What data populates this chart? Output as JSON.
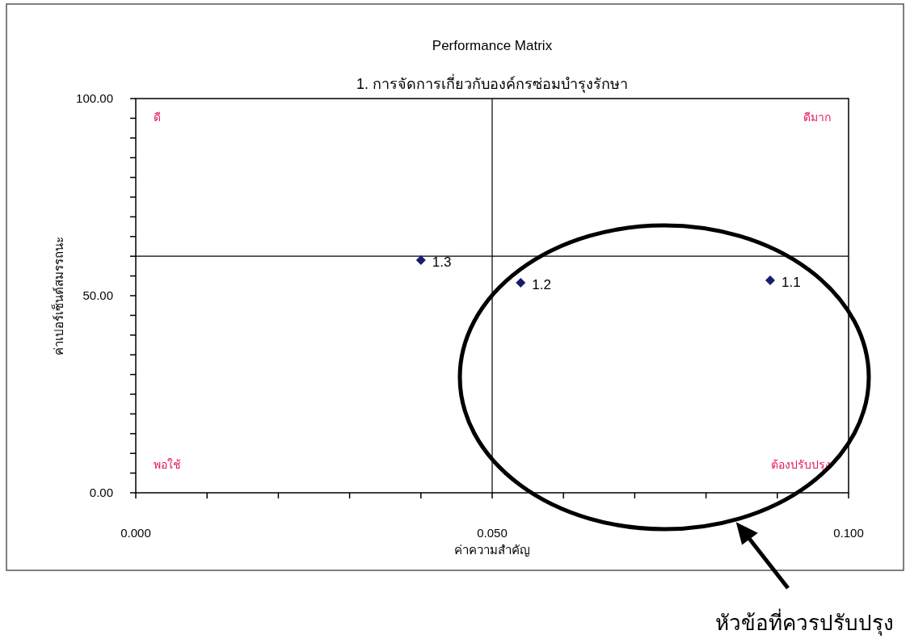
{
  "chart_data": {
    "type": "scatter",
    "title": "Performance Matrix",
    "subtitle": "1. การจัดการเกี่ยวกับองค์กรซ่อมบำรุงรักษา",
    "xlabel": "ค่าความสำคัญ",
    "ylabel": "ค่าเปอร์เซ็นต์สมรรถนะ",
    "series": [
      {
        "color": "#1a1a6e",
        "x": [
          0.089,
          0.054,
          0.04
        ],
        "values": [
          53.9,
          53.3,
          59.0
        ]
      }
    ],
    "marker": "diamond",
    "grid": false,
    "xlim": [
      0,
      0.1
    ],
    "ylim": [
      0,
      100
    ],
    "xticks": [
      {
        "value": 0,
        "label": "0.000"
      },
      {
        "value": 0.01,
        "label": null
      },
      {
        "value": 0.02,
        "label": null
      },
      {
        "value": 0.03,
        "label": null
      },
      {
        "value": 0.04,
        "label": null
      },
      {
        "value": 0.05,
        "label": "0.050"
      },
      {
        "value": 0.06,
        "label": null
      },
      {
        "value": 0.07,
        "label": null
      },
      {
        "value": 0.08,
        "label": null
      },
      {
        "value": 0.09,
        "label": null
      },
      {
        "value": 0.1,
        "label": "0.100"
      }
    ],
    "yticks": [
      {
        "value": 0,
        "label": "0.00"
      },
      {
        "value": 5,
        "label": null
      },
      {
        "value": 10,
        "label": null
      },
      {
        "value": 15,
        "label": null
      },
      {
        "value": 20,
        "label": null
      },
      {
        "value": 25,
        "label": null
      },
      {
        "value": 30,
        "label": null
      },
      {
        "value": 35,
        "label": null
      },
      {
        "value": 40,
        "label": null
      },
      {
        "value": 45,
        "label": null
      },
      {
        "value": 50,
        "label": "50.00"
      },
      {
        "value": 55,
        "label": null
      },
      {
        "value": 60,
        "label": null
      },
      {
        "value": 65,
        "label": null
      },
      {
        "value": 70,
        "label": null
      },
      {
        "value": 75,
        "label": null
      },
      {
        "value": 80,
        "label": null
      },
      {
        "value": 85,
        "label": null
      },
      {
        "value": 90,
        "label": null
      },
      {
        "value": 95,
        "label": null
      },
      {
        "value": 100,
        "label": "100.00"
      }
    ],
    "ref_lines": [
      {
        "axis": "x",
        "value": 0.05,
        "color": "#000000"
      },
      {
        "axis": "y",
        "value": 60,
        "color": "#000000"
      }
    ],
    "annotations": [
      {
        "text": "1.1",
        "x": 0.089,
        "y": 53.9
      },
      {
        "text": "1.2",
        "x": 0.054,
        "y": 53.3
      },
      {
        "text": "1.3",
        "x": 0.04,
        "y": 59.0
      },
      "ดี",
      "ดีมาก",
      "พอใช้",
      "ต้องปรับปรุง",
      "หัวข้อที่ควรปรับปรุง"
    ]
  }
}
